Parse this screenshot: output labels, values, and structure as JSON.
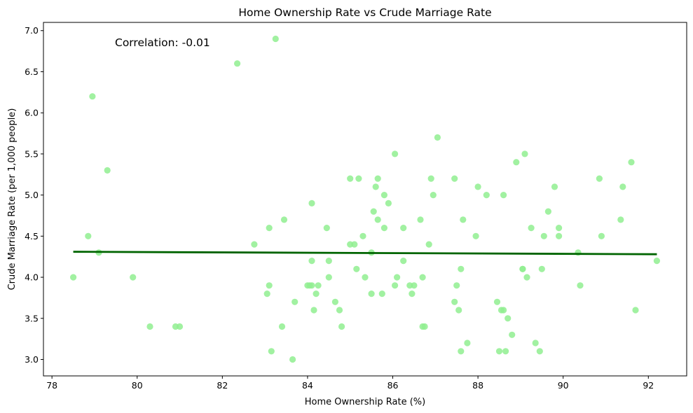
{
  "chart_data": {
    "type": "scatter",
    "title": "Home Ownership Rate vs Crude Marriage Rate",
    "xlabel": "Home Ownership Rate (%)",
    "ylabel": "Crude Marriage Rate (per 1,000 people)",
    "annotation": "Correlation: -0.01",
    "xlim": [
      77.8,
      92.9
    ],
    "ylim": [
      2.8,
      7.1
    ],
    "xticks": [
      78,
      80,
      82,
      84,
      86,
      88,
      90,
      92
    ],
    "yticks": [
      3.0,
      3.5,
      4.0,
      4.5,
      5.0,
      5.5,
      6.0,
      6.5,
      7.0
    ],
    "grid": false,
    "colors": {
      "points": "#90EE90",
      "trend": "#006400"
    },
    "trend_line": {
      "x": [
        78.5,
        92.2
      ],
      "y": [
        4.31,
        4.28
      ]
    },
    "points": [
      [
        78.5,
        4.0
      ],
      [
        78.85,
        4.5
      ],
      [
        78.95,
        6.2
      ],
      [
        79.1,
        4.3
      ],
      [
        79.3,
        5.3
      ],
      [
        79.9,
        4.0
      ],
      [
        80.3,
        3.4
      ],
      [
        80.9,
        3.4
      ],
      [
        81.0,
        3.4
      ],
      [
        82.35,
        6.6
      ],
      [
        82.75,
        4.4
      ],
      [
        83.05,
        3.8
      ],
      [
        83.1,
        4.6
      ],
      [
        83.1,
        3.9
      ],
      [
        83.15,
        3.1
      ],
      [
        83.25,
        6.9
      ],
      [
        83.4,
        3.4
      ],
      [
        83.45,
        4.7
      ],
      [
        83.65,
        3.0
      ],
      [
        83.7,
        3.7
      ],
      [
        84.0,
        3.9
      ],
      [
        84.05,
        3.9
      ],
      [
        84.1,
        4.9
      ],
      [
        84.1,
        3.9
      ],
      [
        84.1,
        4.2
      ],
      [
        84.15,
        3.6
      ],
      [
        84.2,
        3.8
      ],
      [
        84.25,
        3.9
      ],
      [
        84.45,
        4.6
      ],
      [
        84.5,
        4.2
      ],
      [
        84.5,
        4.0
      ],
      [
        84.65,
        3.7
      ],
      [
        84.75,
        3.6
      ],
      [
        84.8,
        3.4
      ],
      [
        85.0,
        5.2
      ],
      [
        85.0,
        4.4
      ],
      [
        85.1,
        4.4
      ],
      [
        85.15,
        4.1
      ],
      [
        85.2,
        5.2
      ],
      [
        85.3,
        4.5
      ],
      [
        85.35,
        4.0
      ],
      [
        85.5,
        3.8
      ],
      [
        85.5,
        4.3
      ],
      [
        85.55,
        4.8
      ],
      [
        85.6,
        5.1
      ],
      [
        85.65,
        4.7
      ],
      [
        85.65,
        5.2
      ],
      [
        85.75,
        3.8
      ],
      [
        85.8,
        5.0
      ],
      [
        85.8,
        4.6
      ],
      [
        85.9,
        4.9
      ],
      [
        86.05,
        5.5
      ],
      [
        86.05,
        3.9
      ],
      [
        86.1,
        4.0
      ],
      [
        86.25,
        4.6
      ],
      [
        86.25,
        4.2
      ],
      [
        86.4,
        3.9
      ],
      [
        86.45,
        3.8
      ],
      [
        86.5,
        3.9
      ],
      [
        86.65,
        4.7
      ],
      [
        86.7,
        3.4
      ],
      [
        86.7,
        4.0
      ],
      [
        86.75,
        3.4
      ],
      [
        86.85,
        4.4
      ],
      [
        86.9,
        5.2
      ],
      [
        86.95,
        5.0
      ],
      [
        87.05,
        5.7
      ],
      [
        87.45,
        3.7
      ],
      [
        87.45,
        5.2
      ],
      [
        87.5,
        3.9
      ],
      [
        87.55,
        3.6
      ],
      [
        87.6,
        4.1
      ],
      [
        87.6,
        3.1
      ],
      [
        87.65,
        4.7
      ],
      [
        87.75,
        3.2
      ],
      [
        87.95,
        4.5
      ],
      [
        88.0,
        5.1
      ],
      [
        88.2,
        5.0
      ],
      [
        88.45,
        3.7
      ],
      [
        88.5,
        3.1
      ],
      [
        88.55,
        3.6
      ],
      [
        88.6,
        3.6
      ],
      [
        88.6,
        5.0
      ],
      [
        88.65,
        3.1
      ],
      [
        88.7,
        3.5
      ],
      [
        88.8,
        3.3
      ],
      [
        88.9,
        5.4
      ],
      [
        89.05,
        4.1
      ],
      [
        89.05,
        4.1
      ],
      [
        89.1,
        5.5
      ],
      [
        89.15,
        4.0
      ],
      [
        89.25,
        4.6
      ],
      [
        89.35,
        3.2
      ],
      [
        89.45,
        3.1
      ],
      [
        89.5,
        4.1
      ],
      [
        89.55,
        4.5
      ],
      [
        89.65,
        4.8
      ],
      [
        89.8,
        5.1
      ],
      [
        89.9,
        4.6
      ],
      [
        89.9,
        4.5
      ],
      [
        90.35,
        4.3
      ],
      [
        90.4,
        3.9
      ],
      [
        90.85,
        5.2
      ],
      [
        90.9,
        4.5
      ],
      [
        91.35,
        4.7
      ],
      [
        91.4,
        5.1
      ],
      [
        91.6,
        5.4
      ],
      [
        91.7,
        3.6
      ],
      [
        92.2,
        4.2
      ]
    ]
  }
}
